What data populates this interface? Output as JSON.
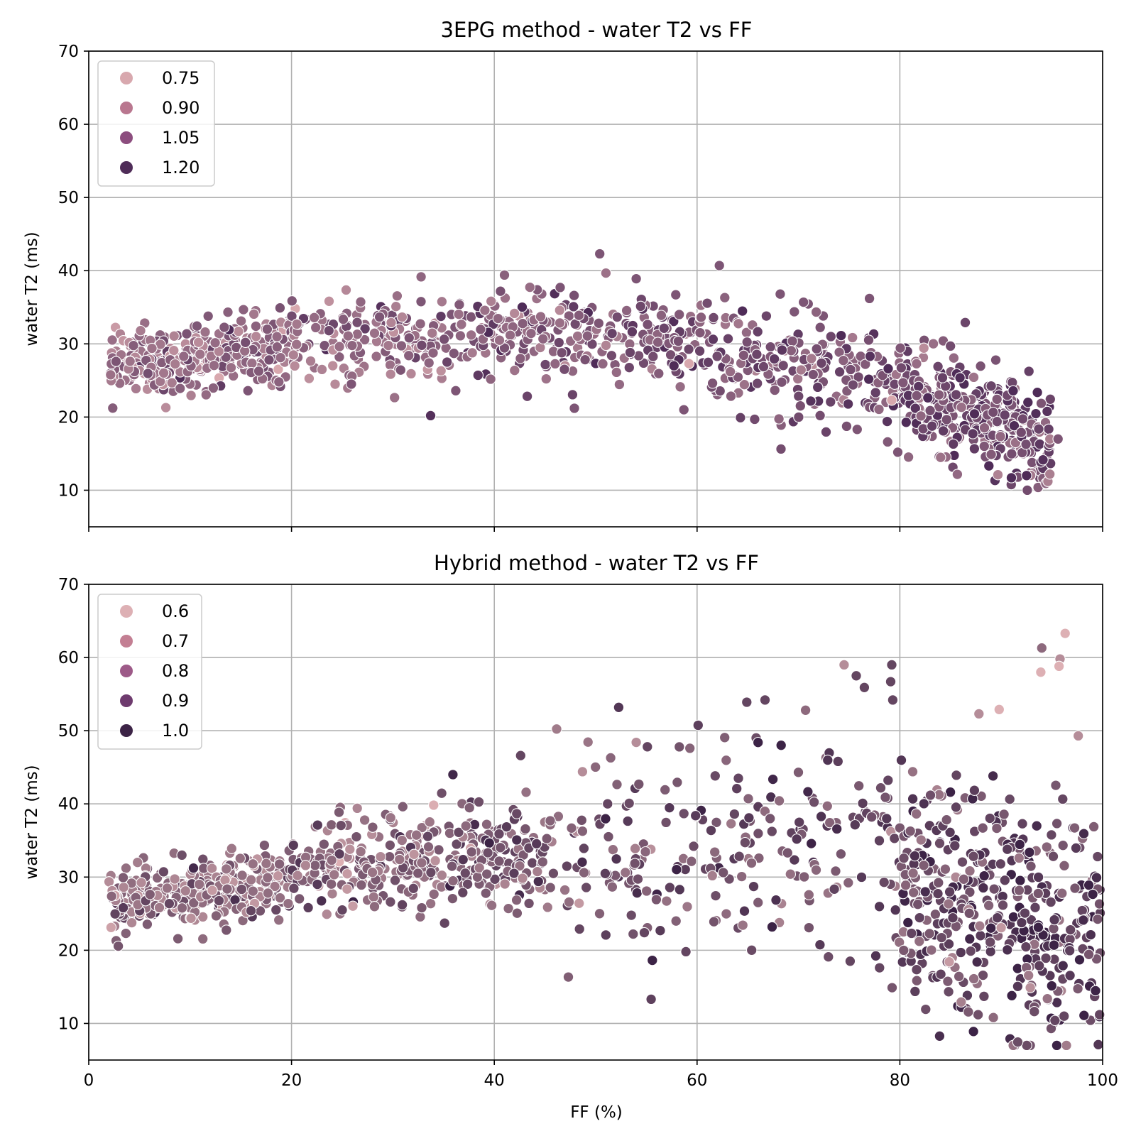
{
  "chart_data": [
    {
      "type": "scatter",
      "title": "3EPG method - water T2 vs FF",
      "xlabel": "",
      "ylabel": "water T2 (ms)",
      "xlim": [
        0,
        100
      ],
      "ylim": [
        5,
        70
      ],
      "xticks": [
        "0",
        "20",
        "40",
        "60",
        "80",
        "100"
      ],
      "yticks": [
        "10",
        "20",
        "30",
        "40",
        "50",
        "60",
        "70"
      ],
      "grid": true,
      "legend_position": "top-left",
      "legend": [
        {
          "label": "0.75",
          "color": "#d8a8ae"
        },
        {
          "label": "0.90",
          "color": "#b9778f"
        },
        {
          "label": "1.05",
          "color": "#8c4d7e"
        },
        {
          "label": "1.20",
          "color": "#4f2c58"
        }
      ],
      "clusters": [
        {
          "x_range": [
            2,
            20
          ],
          "y_center": 28.5,
          "y_slope": 0.14,
          "y_spread": 2.2,
          "count": 340
        },
        {
          "x_range": [
            20,
            60
          ],
          "y_center": 31,
          "y_slope": 0.0,
          "y_spread": 2.8,
          "count": 430
        },
        {
          "x_range": [
            60,
            80
          ],
          "y_center": 27,
          "y_slope": -0.3,
          "y_spread": 3.8,
          "count": 220
        },
        {
          "x_range": [
            80,
            95
          ],
          "y_center": 20,
          "y_slope": -0.5,
          "y_spread": 3.3,
          "count": 330
        }
      ],
      "points": [
        {
          "x": 50.4,
          "y": 42.3,
          "hue": 1.05
        },
        {
          "x": 62.2,
          "y": 40.7,
          "hue": 1.05
        },
        {
          "x": 54.0,
          "y": 38.9,
          "hue": 1.05
        },
        {
          "x": 46.5,
          "y": 37.7,
          "hue": 1.05
        },
        {
          "x": 68.2,
          "y": 36.8,
          "hue": 1.05
        },
        {
          "x": 57.9,
          "y": 36.7,
          "hue": 1.05
        },
        {
          "x": 77.0,
          "y": 36.2,
          "hue": 1.05
        },
        {
          "x": 70.5,
          "y": 35.7,
          "hue": 1.05
        },
        {
          "x": 30.3,
          "y": 35.1,
          "hue": 0.9
        },
        {
          "x": 25.9,
          "y": 24.5,
          "hue": 1.05
        },
        {
          "x": 15.7,
          "y": 23.6,
          "hue": 1.05
        },
        {
          "x": 36.2,
          "y": 23.6,
          "hue": 1.05
        },
        {
          "x": 47.9,
          "y": 21.2,
          "hue": 1.05
        },
        {
          "x": 58.7,
          "y": 21.0,
          "hue": 1.05
        },
        {
          "x": 79.2,
          "y": 22.3,
          "hue": 0.75
        },
        {
          "x": 59.2,
          "y": 27.3,
          "hue": 0.75
        },
        {
          "x": 79.8,
          "y": 15.2,
          "hue": 1.05
        },
        {
          "x": 94.8,
          "y": 17.0,
          "hue": 0.9
        },
        {
          "x": 95.6,
          "y": 17.0,
          "hue": 1.05
        },
        {
          "x": 94.6,
          "y": 11.2,
          "hue": 0.9
        },
        {
          "x": 94.8,
          "y": 12.2,
          "hue": 0.9
        },
        {
          "x": 91.0,
          "y": 11.7,
          "hue": 1.2
        },
        {
          "x": 92.5,
          "y": 12.0,
          "hue": 1.2
        }
      ]
    },
    {
      "type": "scatter",
      "title": "Hybrid method - water T2 vs FF",
      "xlabel": "FF (%)",
      "ylabel": "water T2 (ms)",
      "xlim": [
        0,
        100
      ],
      "ylim": [
        5,
        70
      ],
      "xticks": [
        "0",
        "20",
        "40",
        "60",
        "80",
        "100"
      ],
      "yticks": [
        "10",
        "20",
        "30",
        "40",
        "50",
        "60",
        "70"
      ],
      "grid": true,
      "legend_position": "top-left",
      "legend": [
        {
          "label": "0.6",
          "color": "#ddb0b4"
        },
        {
          "label": "0.7",
          "color": "#c37f93"
        },
        {
          "label": "0.8",
          "color": "#9d5a88"
        },
        {
          "label": "0.9",
          "color": "#6e3b6e"
        },
        {
          "label": "1.0",
          "color": "#3c2346"
        }
      ],
      "clusters": [
        {
          "x_range": [
            2,
            20
          ],
          "y_center": 28,
          "y_slope": 0.2,
          "y_spread": 2.2,
          "count": 350
        },
        {
          "x_range": [
            20,
            45
          ],
          "y_center": 32,
          "y_slope": 0.12,
          "y_spread": 3.2,
          "count": 360
        },
        {
          "x_range": [
            45,
            80
          ],
          "y_center": 34,
          "y_slope": 0.0,
          "y_spread": 7.5,
          "count": 230
        },
        {
          "x_range": [
            80,
            100
          ],
          "y_center": 25,
          "y_slope": -0.4,
          "y_spread": 8.0,
          "count": 420
        }
      ],
      "points": [
        {
          "x": 96.3,
          "y": 63.3,
          "hue": 0.6
        },
        {
          "x": 94.0,
          "y": 61.3,
          "hue": 0.8
        },
        {
          "x": 95.8,
          "y": 59.8,
          "hue": 0.7
        },
        {
          "x": 95.7,
          "y": 58.8,
          "hue": 0.6
        },
        {
          "x": 93.9,
          "y": 58.0,
          "hue": 0.6
        },
        {
          "x": 74.5,
          "y": 59.0,
          "hue": 0.7
        },
        {
          "x": 79.2,
          "y": 59.0,
          "hue": 0.9
        },
        {
          "x": 75.7,
          "y": 57.5,
          "hue": 0.9
        },
        {
          "x": 79.1,
          "y": 56.7,
          "hue": 0.9
        },
        {
          "x": 76.5,
          "y": 55.9,
          "hue": 0.9
        },
        {
          "x": 79.3,
          "y": 54.2,
          "hue": 0.9
        },
        {
          "x": 66.7,
          "y": 54.2,
          "hue": 0.9
        },
        {
          "x": 64.9,
          "y": 53.9,
          "hue": 0.9
        },
        {
          "x": 89.8,
          "y": 52.9,
          "hue": 0.6
        },
        {
          "x": 87.8,
          "y": 52.3,
          "hue": 0.7
        },
        {
          "x": 70.7,
          "y": 52.8,
          "hue": 0.8
        },
        {
          "x": 97.6,
          "y": 49.3,
          "hue": 0.7
        },
        {
          "x": 54.0,
          "y": 48.4,
          "hue": 0.7
        },
        {
          "x": 55.1,
          "y": 47.8,
          "hue": 0.9
        },
        {
          "x": 42.6,
          "y": 46.6,
          "hue": 0.9
        },
        {
          "x": 48.7,
          "y": 44.4,
          "hue": 0.7
        },
        {
          "x": 58.9,
          "y": 19.8,
          "hue": 0.9
        },
        {
          "x": 54.8,
          "y": 22.4,
          "hue": 0.9
        },
        {
          "x": 48.4,
          "y": 22.9,
          "hue": 0.9
        },
        {
          "x": 35.1,
          "y": 23.7,
          "hue": 0.9
        },
        {
          "x": 16.0,
          "y": 25.4,
          "hue": 0.9
        },
        {
          "x": 25.0,
          "y": 25.5,
          "hue": 0.9
        },
        {
          "x": 95.3,
          "y": 10.4,
          "hue": 0.9
        },
        {
          "x": 96.2,
          "y": 11.0,
          "hue": 0.9
        },
        {
          "x": 99.7,
          "y": 11.2,
          "hue": 0.9
        },
        {
          "x": 88.3,
          "y": 13.7,
          "hue": 0.9
        },
        {
          "x": 75.1,
          "y": 18.5,
          "hue": 0.9
        },
        {
          "x": 78.0,
          "y": 17.6,
          "hue": 0.9
        }
      ]
    }
  ]
}
